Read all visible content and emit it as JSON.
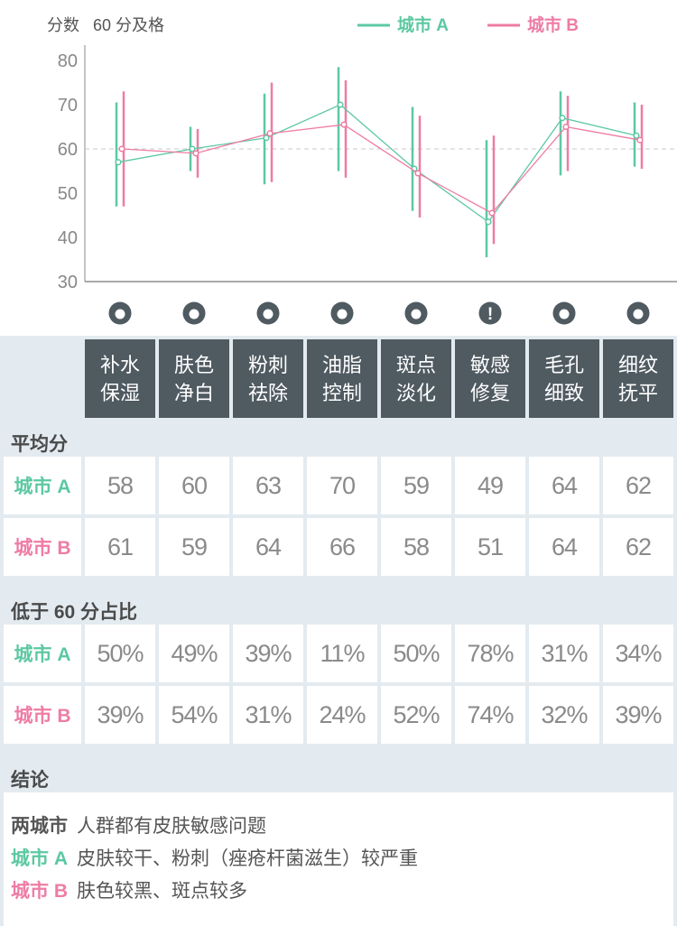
{
  "colors": {
    "cityA": "#5cc8a2",
    "cityB": "#ee7ca5",
    "dark": "#4f5a61",
    "text": "#555555"
  },
  "header": {
    "ylabel": "分数",
    "pass_note": "60 分及格"
  },
  "chart_data": {
    "type": "line",
    "ylabel": "分数",
    "ylim": [
      30,
      80
    ],
    "yticks": [
      30,
      40,
      50,
      60,
      70,
      80
    ],
    "reference_line": {
      "y": 60,
      "label": "60 分及格"
    },
    "categories": [
      "补水保湿",
      "肤色净白",
      "粉刺祛除",
      "油脂控制",
      "斑点淡化",
      "敏感修复",
      "毛孔细致",
      "细纹抚平"
    ],
    "legend_position": "top-right",
    "series": [
      {
        "name": "城市 A",
        "values": [
          57,
          60,
          62.5,
          70,
          55.5,
          43.5,
          67,
          63
        ],
        "high": [
          70.5,
          65,
          72.5,
          78.5,
          69.5,
          62,
          73,
          70.5
        ],
        "low": [
          47,
          55,
          52,
          55,
          46,
          35.5,
          54,
          56
        ]
      },
      {
        "name": "城市 B",
        "values": [
          60,
          59,
          63.5,
          65.5,
          54.5,
          45.5,
          65,
          62
        ],
        "high": [
          73,
          64.5,
          75,
          75.5,
          67.5,
          63,
          72,
          70
        ],
        "low": [
          47,
          53.5,
          52.5,
          53.5,
          44.5,
          38.5,
          55,
          55.5
        ]
      }
    ]
  },
  "categories_display": [
    [
      "补水",
      "保湿"
    ],
    [
      "肤色",
      "净白"
    ],
    [
      "粉刺",
      "祛除"
    ],
    [
      "油脂",
      "控制"
    ],
    [
      "斑点",
      "淡化"
    ],
    [
      "敏感",
      "修复"
    ],
    [
      "毛孔",
      "细致"
    ],
    [
      "细纹",
      "抚平"
    ]
  ],
  "icons": [
    "water-drop-icon",
    "face-icon",
    "pimple-icon",
    "oil-icon",
    "spot-face-icon",
    "alert-icon",
    "pore-icon",
    "iron-icon"
  ],
  "avg": {
    "title": "平均分",
    "rows": [
      {
        "label": "城市 A",
        "values": [
          "58",
          "60",
          "63",
          "70",
          "59",
          "49",
          "64",
          "62"
        ]
      },
      {
        "label": "城市 B",
        "values": [
          "61",
          "59",
          "64",
          "66",
          "58",
          "51",
          "64",
          "62"
        ]
      }
    ]
  },
  "below": {
    "title": "低于 60 分占比",
    "rows": [
      {
        "label": "城市 A",
        "values": [
          "50%",
          "49%",
          "39%",
          "11%",
          "50%",
          "78%",
          "31%",
          "34%"
        ]
      },
      {
        "label": "城市 B",
        "values": [
          "39%",
          "54%",
          "31%",
          "24%",
          "52%",
          "74%",
          "32%",
          "39%"
        ]
      }
    ]
  },
  "conclusion": {
    "title": "结论",
    "lines": [
      {
        "label": "两城市",
        "text": "人群都有皮肤敏感问题"
      },
      {
        "label": "城市 A",
        "text": "皮肤较干、粉刺（痤疮杆菌滋生）较严重"
      },
      {
        "label": "城市 B",
        "text": "肤色较黑、斑点较多"
      }
    ]
  }
}
